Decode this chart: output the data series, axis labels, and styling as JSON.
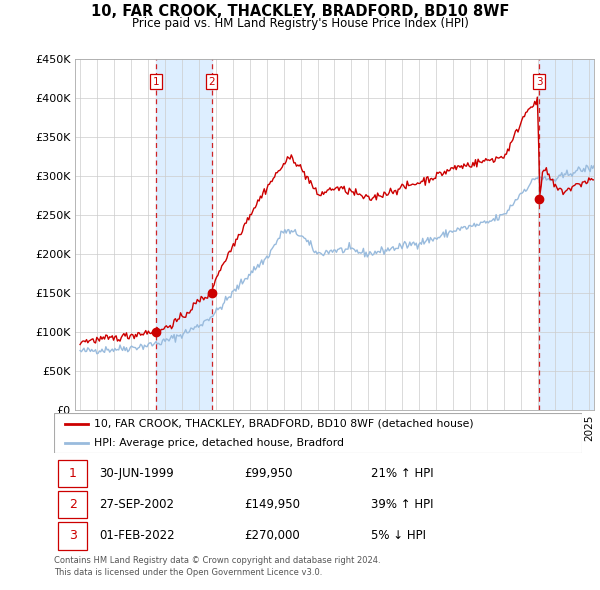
{
  "title": "10, FAR CROOK, THACKLEY, BRADFORD, BD10 8WF",
  "subtitle": "Price paid vs. HM Land Registry's House Price Index (HPI)",
  "legend_line1": "10, FAR CROOK, THACKLEY, BRADFORD, BD10 8WF (detached house)",
  "legend_line2": "HPI: Average price, detached house, Bradford",
  "footer1": "Contains HM Land Registry data © Crown copyright and database right 2024.",
  "footer2": "This data is licensed under the Open Government Licence v3.0.",
  "transactions": [
    {
      "num": 1,
      "date": "30-JUN-1999",
      "price": "£99,950",
      "pct": "21% ↑ HPI",
      "year": 1999.5,
      "value": 99950
    },
    {
      "num": 2,
      "date": "27-SEP-2002",
      "price": "£149,950",
      "pct": "39% ↑ HPI",
      "year": 2002.75,
      "value": 149950
    },
    {
      "num": 3,
      "date": "01-FEB-2022",
      "price": "£270,000",
      "pct": "5% ↓ HPI",
      "year": 2022.08,
      "value": 270000
    }
  ],
  "ylim": [
    0,
    450000
  ],
  "yticks": [
    0,
    50000,
    100000,
    150000,
    200000,
    250000,
    300000,
    350000,
    400000,
    450000
  ],
  "ytick_labels": [
    "£0",
    "£50K",
    "£100K",
    "£150K",
    "£200K",
    "£250K",
    "£300K",
    "£350K",
    "£400K",
    "£450K"
  ],
  "price_color": "#cc0000",
  "hpi_color": "#99bbdd",
  "shade_color": "#ddeeff",
  "dashed_color": "#cc0000",
  "marker_color": "#cc0000",
  "bg_color": "#ffffff",
  "plot_bg": "#ffffff",
  "grid_color": "#cccccc",
  "xlim_left": 1994.7,
  "xlim_right": 2025.3
}
